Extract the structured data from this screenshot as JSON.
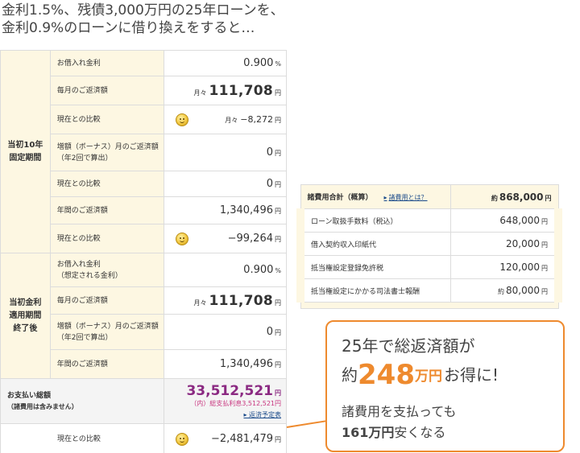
{
  "heading": {
    "line1": "金利1.5%、残債3,000万円の25年ローンを、",
    "line2": "金利0.9%のローンに借り換えをすると…"
  },
  "groups": {
    "initial": "当初10年\n固定期間",
    "after": "当初金利\n適用期間\n終了後"
  },
  "rows": {
    "rate1": {
      "label": "お借入れ金利",
      "value": "0.900",
      "unit": "%"
    },
    "monthly1": {
      "label": "毎月のご返済額",
      "prefix": "月々",
      "value": "111,708",
      "unit": "円"
    },
    "compare1": {
      "label": "現在との比較",
      "prefix": "月々",
      "value": "−8,272",
      "unit": "円"
    },
    "bonus1": {
      "label": "増額（ボーナス）月のご返済額\n（年2回で算出）",
      "value": "0",
      "unit": "円"
    },
    "compare2": {
      "label": "現在との比較",
      "value": "0",
      "unit": "円"
    },
    "annual1": {
      "label": "年間のご返済額",
      "value": "1,340,496",
      "unit": "円"
    },
    "compare3": {
      "label": "現在との比較",
      "value": "−99,264",
      "unit": "円"
    },
    "rate2": {
      "label": "お借入れ金利\n（想定される金利）",
      "value": "0.900",
      "unit": "%"
    },
    "monthly2": {
      "label": "毎月のご返済額",
      "prefix": "月々",
      "value": "111,708",
      "unit": "円"
    },
    "bonus2": {
      "label": "増額（ボーナス）月のご返済額\n（年2回で算出）",
      "value": "0",
      "unit": "円"
    },
    "annual2": {
      "label": "年間のご返済額",
      "value": "1,340,496",
      "unit": "円"
    }
  },
  "total": {
    "label": "お支払い総額",
    "sublabel": "（諸費用は含みません）",
    "value": "33,512,521",
    "unit": "円",
    "note": "（内）総支払利息3,512,521円",
    "link": "返済予定表"
  },
  "final_compare": {
    "label": "現在との比較",
    "value": "−2,481,479",
    "unit": "円"
  },
  "fees": {
    "title": "諸費用合計（概算）",
    "link": "諸費用とは？",
    "total_prefix": "約",
    "total": "868,000",
    "unit": "円",
    "items": [
      {
        "label": "ローン取扱手数料（税込）",
        "value": "648,000",
        "prefix": ""
      },
      {
        "label": "借入契約収入印紙代",
        "value": "20,000",
        "prefix": ""
      },
      {
        "label": "抵当権設定登録免許税",
        "value": "120,000",
        "prefix": ""
      },
      {
        "label": "抵当権設定にかかる司法書士報酬",
        "value": "80,000",
        "prefix": "約"
      }
    ]
  },
  "callout": {
    "line1": "25年で総返済額が",
    "line2_pre": "約",
    "line2_num": "248",
    "line2_unit": "万円",
    "line2_post": "お得に!",
    "line3": "諸費用を支払っても",
    "line4_bold": "161万円",
    "line4_post": "安くなる"
  },
  "colors": {
    "accent_orange": "#ee8a2e",
    "pink": "#c8357f",
    "red": "#e23232",
    "cream": "#fdf7e2"
  },
  "icons": {
    "smiley": "smiley-face-icon"
  }
}
